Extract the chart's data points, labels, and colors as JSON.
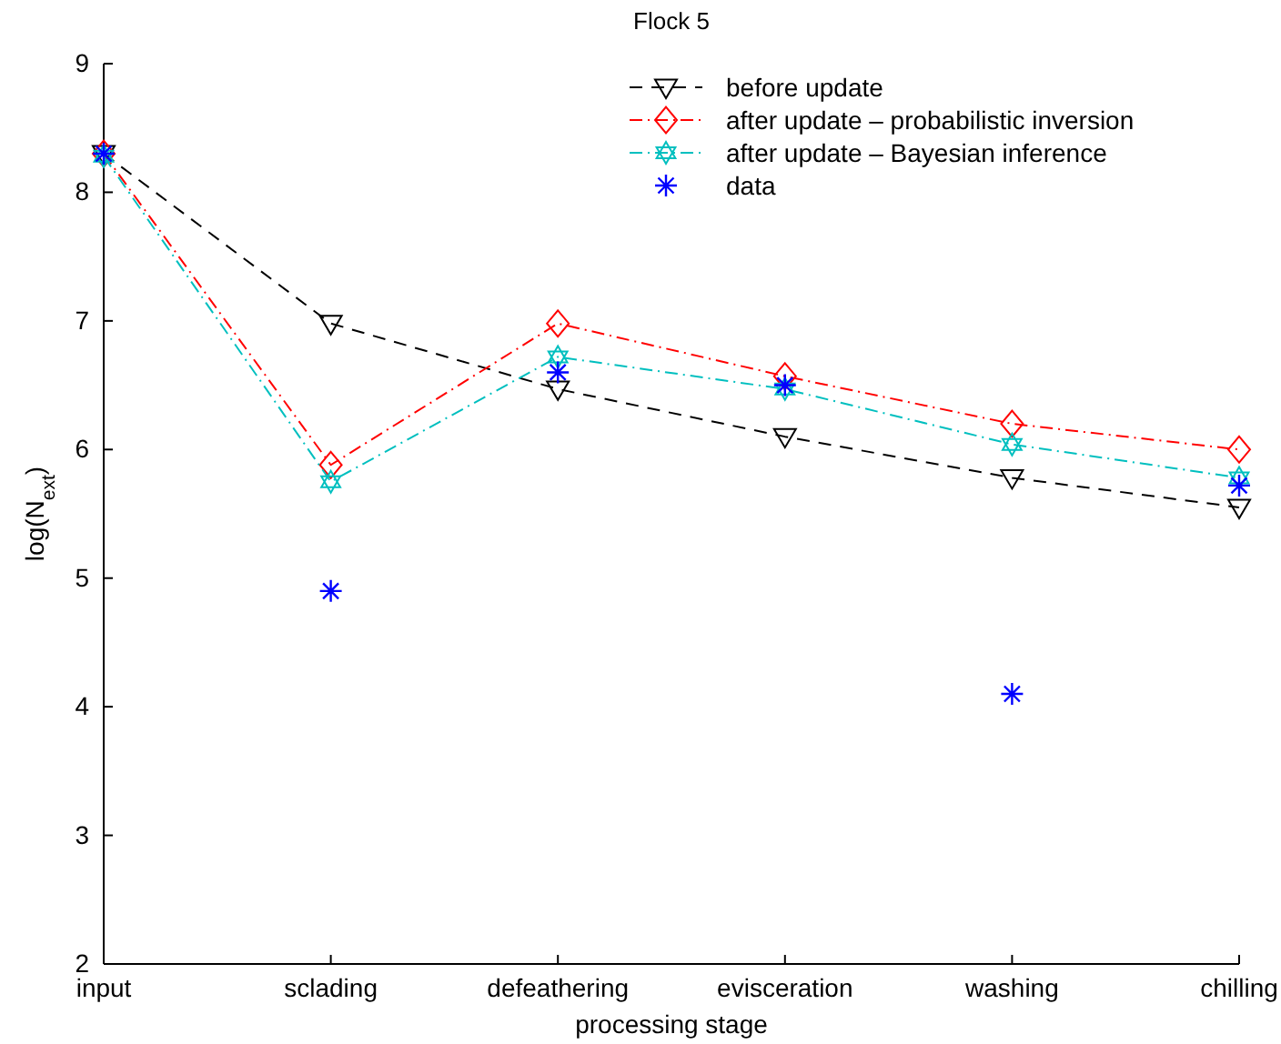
{
  "chart_data": {
    "type": "line",
    "title": "Flock 5",
    "xlabel": "processing stage",
    "ylabel": "log(N$_{ext}$)",
    "categories": [
      "input",
      "sclading",
      "defeathering",
      "evisceration",
      "washing",
      "chilling"
    ],
    "ylim": [
      2,
      9
    ],
    "yticks": [
      2,
      3,
      4,
      5,
      6,
      7,
      8,
      9
    ],
    "grid": false,
    "legend": "top right",
    "series": [
      {
        "name": "before update",
        "color": "#000000",
        "marker": "triangle",
        "line_style": "dashed",
        "values": [
          8.3,
          6.98,
          6.47,
          6.1,
          5.78,
          5.55
        ]
      },
      {
        "name": "after update – probabilistic inversion",
        "color": "#ff0000",
        "marker": "diamond",
        "line_style": "dotted",
        "values": [
          8.3,
          5.88,
          6.98,
          6.57,
          6.2,
          6.0
        ]
      },
      {
        "name": "after update – Bayesian inference",
        "color": "#00bfbf",
        "marker": "star",
        "line_style": "dotted",
        "values": [
          8.28,
          5.75,
          6.72,
          6.47,
          6.04,
          5.78
        ]
      },
      {
        "name": "data",
        "type": "scatter",
        "color": "#0000ff",
        "marker": "cross",
        "values": [
          8.3,
          4.9,
          6.6,
          6.5,
          4.1,
          5.72
        ]
      }
    ]
  }
}
